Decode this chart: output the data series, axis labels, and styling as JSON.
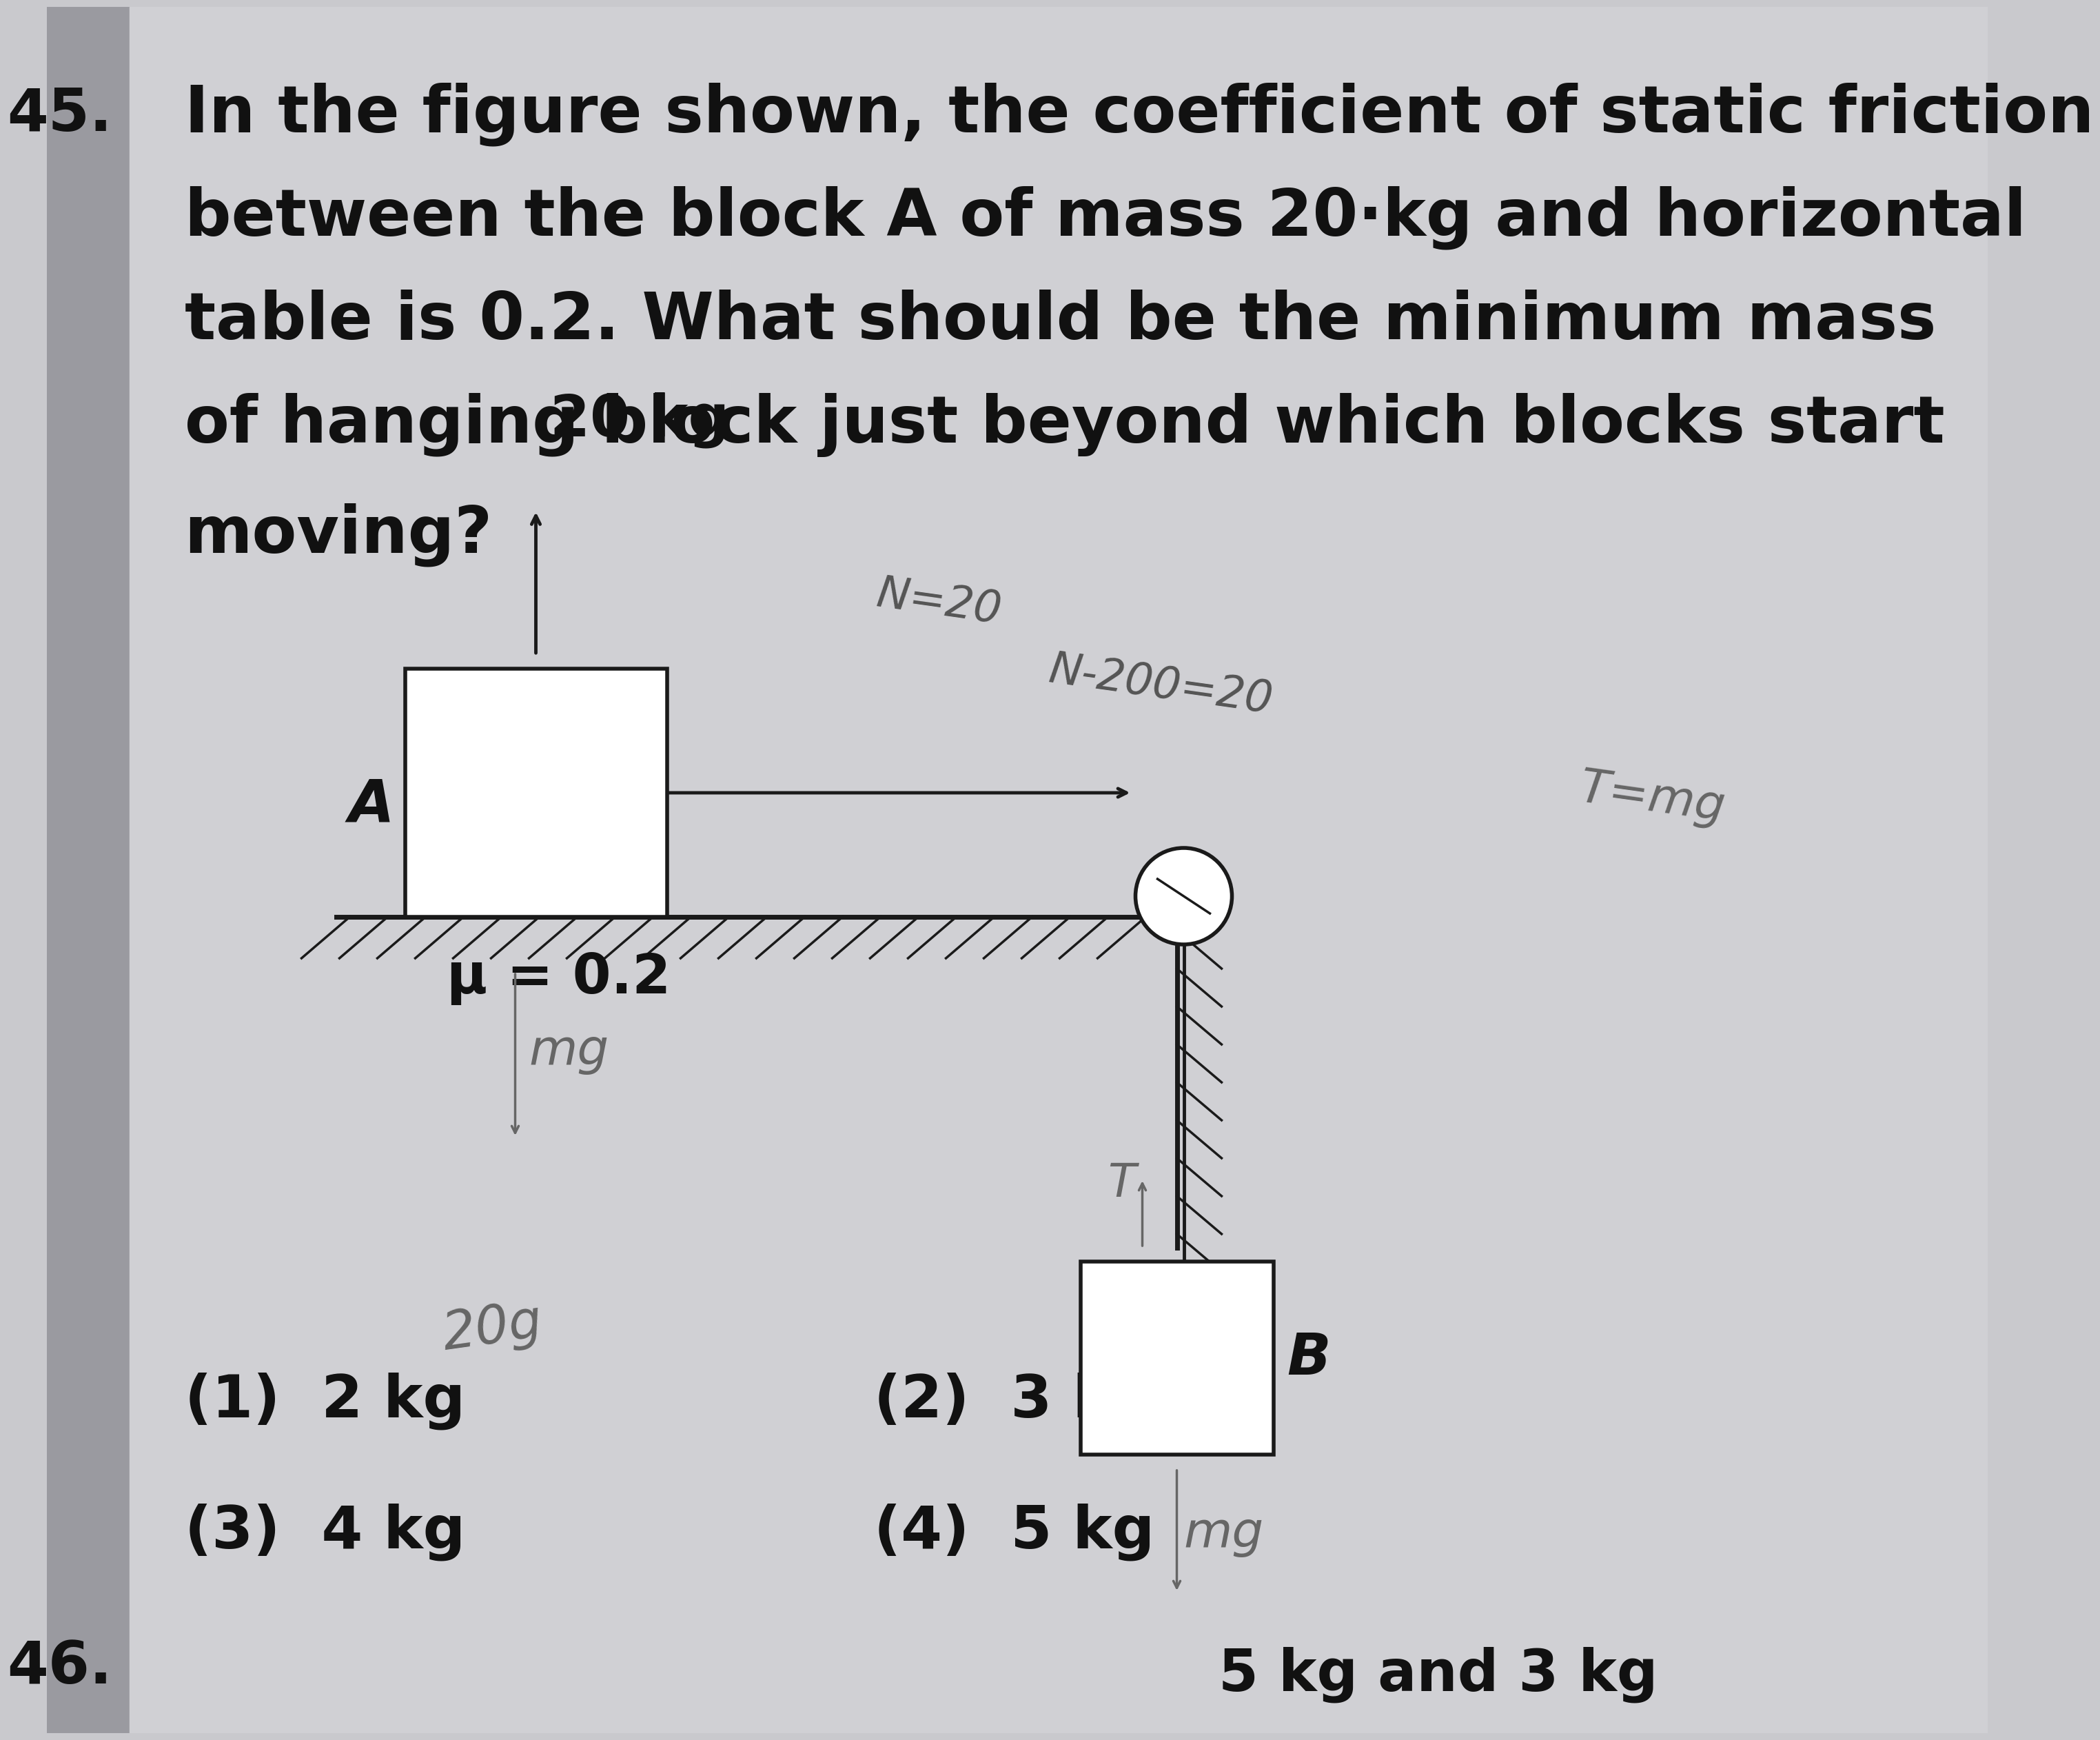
{
  "bg_left": "#b0b0b8",
  "bg_right": "#d8d8dc",
  "bg_color": "#c8c8cc",
  "text_color": "#111111",
  "fig_color": "#1a1a1a",
  "hand_color": "#555555",
  "question_number": "45.",
  "q_line1": "In the figure shown, the coefficient of static friction",
  "q_line2": "between the block A of mass 20·kg and horizontal",
  "q_line3": "table is 0.2. What should be the minimum mass",
  "q_line4": "of hanging block just beyond which blocks start",
  "q_line5": "moving?",
  "mass_label": "20 kg",
  "label_A": "A",
  "mu_label": "μ = 0.2",
  "label_B": "B",
  "label_m": "m",
  "hand_N20": "N=20",
  "hand_N200": "N-200=20",
  "hand_Tmg": "T=mg",
  "hand_mg_left": "mg",
  "hand_mg_right": "mg",
  "hand_T": "T",
  "hand_20g": "20g",
  "opt1": "(1)  2 kg",
  "opt2": "(2)  3 kg",
  "opt3": "(3)  4 kg",
  "opt4": "(4)  5 kg",
  "q46": "46.",
  "bot_right": "5 kg and 3 kg"
}
